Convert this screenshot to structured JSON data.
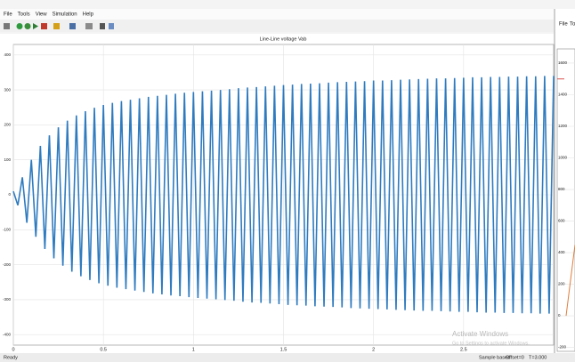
{
  "menu": [
    "File",
    "Tools",
    "View",
    "Simulation",
    "Help"
  ],
  "side_menu": [
    "File",
    "To"
  ],
  "status": {
    "left": "Ready",
    "sample": "Sample based",
    "offset": "Offset=0",
    "time": "T=3.000"
  },
  "watermark": {
    "title": "Activate Windows",
    "subtitle": "Go to Settings to activate Windows."
  },
  "chart_data": [
    {
      "type": "line",
      "title": "Line-Line voltage Vab",
      "x": [
        0,
        0.025,
        0.05,
        0.075,
        0.1,
        0.125,
        0.15,
        0.175,
        0.2,
        0.225,
        0.25,
        0.275,
        0.3,
        0.325,
        0.35,
        0.375,
        0.4,
        0.425,
        0.45,
        0.475,
        0.5,
        0.525,
        0.55,
        0.575,
        0.6,
        0.625,
        0.65,
        0.675,
        0.7,
        0.725,
        0.75,
        0.775,
        0.8,
        0.825,
        0.85,
        0.875,
        0.9,
        0.925,
        0.95,
        0.975,
        1,
        1.025,
        1.05,
        1.075,
        1.1,
        1.125,
        1.15,
        1.175,
        1.2,
        1.225,
        1.25,
        1.275,
        1.3,
        1.325,
        1.35,
        1.375,
        1.4,
        1.425,
        1.45,
        1.475,
        1.5,
        1.525,
        1.55,
        1.575,
        1.6,
        1.625,
        1.65,
        1.675,
        1.7,
        1.725,
        1.75,
        1.775,
        1.8,
        1.825,
        1.85,
        1.875,
        1.9,
        1.925,
        1.95,
        1.975,
        2,
        2.025,
        2.05,
        2.075,
        2.1,
        2.125,
        2.15,
        2.175,
        2.2,
        2.225,
        2.25,
        2.275,
        2.3,
        2.325,
        2.35,
        2.375,
        2.4,
        2.425,
        2.45,
        2.475,
        2.5,
        2.525,
        2.55,
        2.575,
        2.6,
        2.625,
        2.65,
        2.675,
        2.7,
        2.725,
        2.75,
        2.775,
        2.8,
        2.825,
        2.85,
        2.875,
        2.9,
        2.925,
        2.95,
        2.975,
        3
      ],
      "series": [
        {
          "color": "#2f7bbf",
          "values": [
            10,
            -30,
            50,
            -80,
            100,
            -120,
            140,
            -155,
            170,
            -182,
            193,
            -203,
            212,
            -220,
            227,
            -233,
            239,
            -244,
            249,
            -253,
            257,
            -260,
            263,
            -266,
            268,
            -270,
            272,
            -274,
            276,
            -278,
            280,
            -282,
            283,
            -285,
            286,
            -288,
            289,
            -290,
            292,
            -293,
            294,
            -295,
            296,
            -297,
            298,
            -299,
            300,
            -301,
            302,
            -303,
            305,
            -306,
            307,
            -308,
            308,
            -309,
            310,
            -311,
            312,
            -313,
            314,
            -315,
            315,
            -316,
            317,
            -317,
            318,
            -319,
            319,
            -320,
            321,
            -321,
            322,
            -322,
            323,
            -324,
            324,
            -325,
            325,
            -326,
            327,
            -327,
            327,
            -328,
            328,
            -329,
            329,
            -330,
            330,
            -331,
            331,
            -332,
            332,
            -332,
            333,
            -333,
            333,
            -334,
            334,
            -335,
            335,
            -335,
            336,
            -336,
            336,
            -337,
            337,
            -337,
            337,
            -338,
            338,
            -338,
            338,
            -339,
            339,
            -339,
            339,
            -340,
            340,
            -340,
            340
          ]
        }
      ],
      "xlim": [
        0,
        3
      ],
      "xticks": [
        0,
        0.5,
        1,
        1.5,
        2,
        2.5
      ],
      "ylim": [
        -430,
        430
      ],
      "yticks": [
        -400,
        -300,
        -200,
        -100,
        0,
        100,
        200,
        300,
        400
      ],
      "grid": true
    },
    {
      "type": "line",
      "series": [
        {
          "color": "#d9534f",
          "x": [
            0,
            0.4
          ],
          "values": [
            1500,
            1500
          ]
        },
        {
          "color": "#e07b39",
          "x": [
            0.5,
            1
          ],
          "values": [
            0,
            450
          ]
        }
      ],
      "xlim": [
        0,
        1
      ],
      "ylim": [
        -225,
        1690
      ],
      "yticks": [
        -200,
        0,
        200,
        400,
        600,
        800,
        1000,
        1200,
        1400,
        1600
      ],
      "grid": true
    }
  ]
}
